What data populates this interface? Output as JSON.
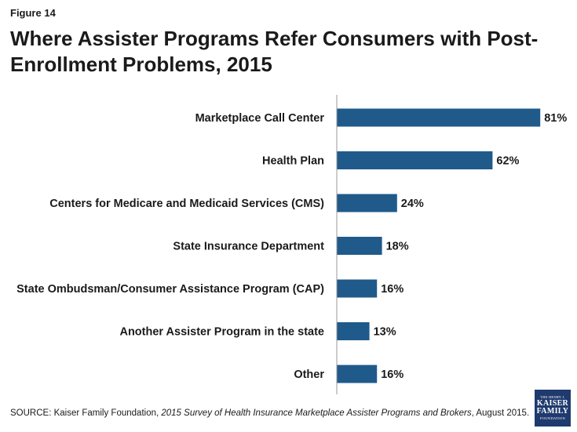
{
  "figure_label": "Figure 14",
  "title": "Where Assister Programs Refer Consumers with Post-Enrollment Problems, 2015",
  "source": {
    "prefix": "SOURCE: Kaiser Family Foundation, ",
    "italic": "2015 Survey of Health Insurance Marketplace Assister Programs and Brokers",
    "suffix": ", August 2015."
  },
  "logo": {
    "line1": "THE HENRY J.",
    "line2": "KAISER",
    "line3": "FAMILY",
    "line4": "FOUNDATION"
  },
  "colors": {
    "bar": "#1f5a8b",
    "axis": "#9a9a9a"
  },
  "chart_data": {
    "type": "bar",
    "orientation": "horizontal",
    "categories": [
      "Marketplace Call Center",
      "Health Plan",
      "Centers for Medicare and Medicaid Services (CMS)",
      "State Insurance Department",
      "State Ombudsman/Consumer Assistance Program (CAP)",
      "Another Assister Program in the state",
      "Other"
    ],
    "values": [
      81,
      62,
      24,
      18,
      16,
      13,
      16
    ],
    "value_labels": [
      "81%",
      "62%",
      "24%",
      "18%",
      "16%",
      "13%",
      "16%"
    ],
    "unit": "%",
    "xlim": [
      0,
      100
    ],
    "grid": false,
    "legend": "none"
  }
}
